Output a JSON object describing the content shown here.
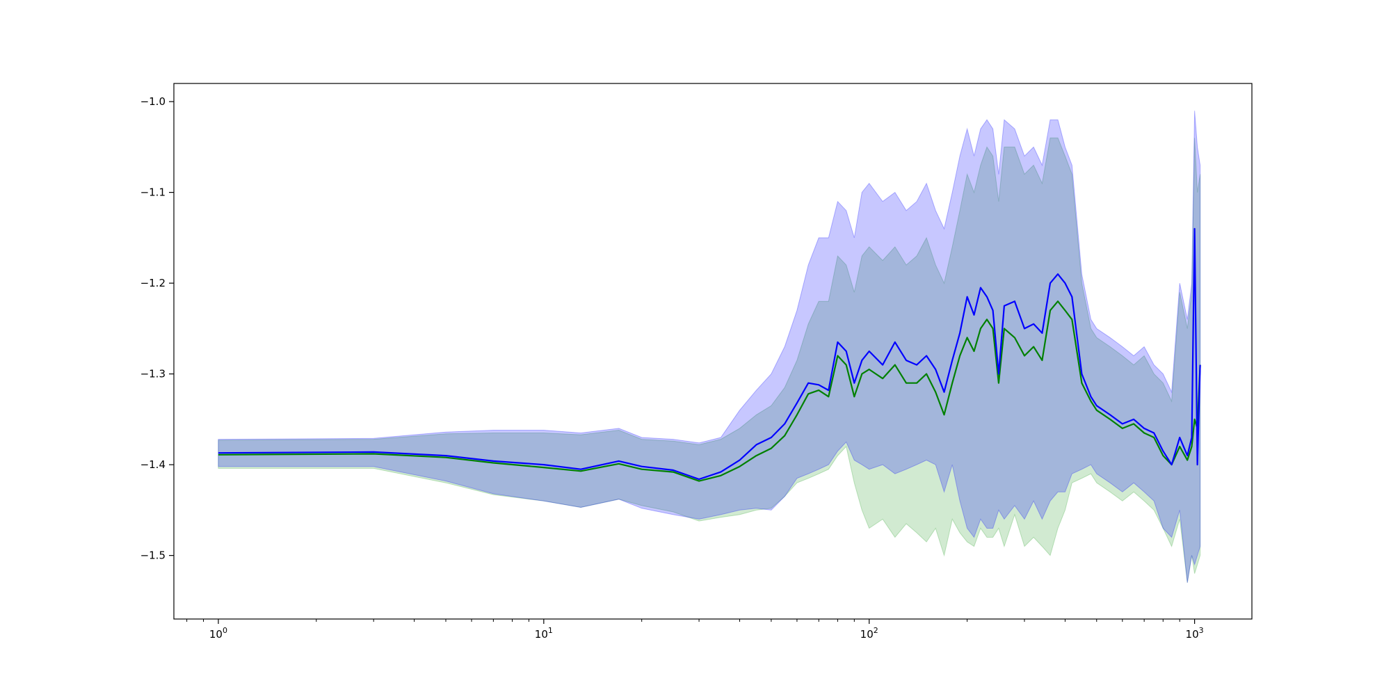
{
  "chart_data": {
    "type": "line",
    "title": "",
    "xlabel": "",
    "ylabel": "",
    "xscale": "log",
    "xlim": [
      0.73,
      1500
    ],
    "ylim": [
      -1.57,
      -0.98
    ],
    "grid": false,
    "legend": "none",
    "x_ticks": [
      {
        "value": 1,
        "base": "10",
        "exp": "0"
      },
      {
        "value": 10,
        "base": "10",
        "exp": "1"
      },
      {
        "value": 100,
        "base": "10",
        "exp": "2"
      },
      {
        "value": 1000,
        "base": "10",
        "exp": "3"
      }
    ],
    "y_ticks": [
      {
        "value": -1.0,
        "label": "−1.0"
      },
      {
        "value": -1.1,
        "label": "−1.1"
      },
      {
        "value": -1.2,
        "label": "−1.2"
      },
      {
        "value": -1.3,
        "label": "−1.3"
      },
      {
        "value": -1.4,
        "label": "−1.4"
      },
      {
        "value": -1.5,
        "label": "−1.5"
      }
    ],
    "series": [
      {
        "color": "#008000",
        "band_color": "#2ca02c",
        "x": [
          1,
          3,
          5,
          7,
          10,
          13,
          17,
          20,
          25,
          30,
          35,
          40,
          45,
          50,
          55,
          60,
          65,
          70,
          75,
          80,
          85,
          90,
          95,
          100,
          110,
          120,
          130,
          140,
          150,
          160,
          170,
          180,
          190,
          200,
          210,
          220,
          230,
          240,
          250,
          260,
          280,
          300,
          320,
          340,
          360,
          380,
          400,
          420,
          450,
          480,
          500,
          550,
          600,
          650,
          700,
          750,
          800,
          850,
          900,
          950,
          980,
          1000,
          1020,
          1040
        ],
        "y": [
          -1.389,
          -1.388,
          -1.392,
          -1.398,
          -1.403,
          -1.407,
          -1.399,
          -1.405,
          -1.408,
          -1.418,
          -1.412,
          -1.402,
          -1.39,
          -1.382,
          -1.368,
          -1.345,
          -1.322,
          -1.318,
          -1.325,
          -1.28,
          -1.29,
          -1.325,
          -1.3,
          -1.295,
          -1.305,
          -1.29,
          -1.31,
          -1.31,
          -1.3,
          -1.32,
          -1.345,
          -1.31,
          -1.28,
          -1.26,
          -1.275,
          -1.25,
          -1.24,
          -1.25,
          -1.31,
          -1.25,
          -1.26,
          -1.28,
          -1.27,
          -1.285,
          -1.23,
          -1.22,
          -1.23,
          -1.24,
          -1.31,
          -1.33,
          -1.34,
          -1.35,
          -1.36,
          -1.355,
          -1.365,
          -1.37,
          -1.39,
          -1.4,
          -1.38,
          -1.395,
          -1.38,
          -1.35,
          -1.36,
          -1.29
        ],
        "lower": [
          -1.404,
          -1.404,
          -1.42,
          -1.433,
          -1.44,
          -1.447,
          -1.438,
          -1.445,
          -1.452,
          -1.462,
          -1.458,
          -1.455,
          -1.45,
          -1.448,
          -1.435,
          -1.42,
          -1.415,
          -1.41,
          -1.405,
          -1.39,
          -1.38,
          -1.42,
          -1.45,
          -1.47,
          -1.46,
          -1.48,
          -1.465,
          -1.475,
          -1.485,
          -1.47,
          -1.5,
          -1.46,
          -1.475,
          -1.485,
          -1.49,
          -1.47,
          -1.48,
          -1.48,
          -1.47,
          -1.49,
          -1.455,
          -1.49,
          -1.48,
          -1.49,
          -1.5,
          -1.47,
          -1.45,
          -1.42,
          -1.415,
          -1.41,
          -1.42,
          -1.43,
          -1.44,
          -1.43,
          -1.44,
          -1.45,
          -1.47,
          -1.49,
          -1.46,
          -1.53,
          -1.5,
          -1.52,
          -1.51,
          -1.5
        ],
        "upper": [
          -1.373,
          -1.372,
          -1.366,
          -1.365,
          -1.365,
          -1.367,
          -1.362,
          -1.372,
          -1.374,
          -1.378,
          -1.372,
          -1.36,
          -1.345,
          -1.335,
          -1.315,
          -1.285,
          -1.245,
          -1.22,
          -1.22,
          -1.17,
          -1.18,
          -1.21,
          -1.17,
          -1.16,
          -1.175,
          -1.16,
          -1.18,
          -1.17,
          -1.15,
          -1.18,
          -1.2,
          -1.16,
          -1.12,
          -1.08,
          -1.1,
          -1.07,
          -1.05,
          -1.06,
          -1.11,
          -1.05,
          -1.05,
          -1.08,
          -1.07,
          -1.09,
          -1.04,
          -1.04,
          -1.06,
          -1.08,
          -1.2,
          -1.25,
          -1.26,
          -1.27,
          -1.28,
          -1.29,
          -1.28,
          -1.3,
          -1.31,
          -1.33,
          -1.21,
          -1.25,
          -1.21,
          -1.04,
          -1.1,
          -1.08
        ]
      },
      {
        "color": "#0000ff",
        "band_color": "#0000ff",
        "x": [
          1,
          3,
          5,
          7,
          10,
          13,
          17,
          20,
          25,
          30,
          35,
          40,
          45,
          50,
          55,
          60,
          65,
          70,
          75,
          80,
          85,
          90,
          95,
          100,
          110,
          120,
          130,
          140,
          150,
          160,
          170,
          180,
          190,
          200,
          210,
          220,
          230,
          240,
          250,
          260,
          280,
          300,
          320,
          340,
          360,
          380,
          400,
          420,
          450,
          480,
          500,
          550,
          600,
          650,
          700,
          750,
          800,
          850,
          900,
          950,
          980,
          1000,
          1020,
          1040
        ],
        "y": [
          -1.387,
          -1.386,
          -1.39,
          -1.396,
          -1.4,
          -1.405,
          -1.396,
          -1.402,
          -1.406,
          -1.416,
          -1.408,
          -1.395,
          -1.378,
          -1.37,
          -1.355,
          -1.332,
          -1.31,
          -1.312,
          -1.318,
          -1.265,
          -1.275,
          -1.31,
          -1.285,
          -1.275,
          -1.29,
          -1.265,
          -1.285,
          -1.29,
          -1.28,
          -1.295,
          -1.32,
          -1.285,
          -1.255,
          -1.215,
          -1.235,
          -1.205,
          -1.215,
          -1.23,
          -1.3,
          -1.225,
          -1.22,
          -1.25,
          -1.245,
          -1.255,
          -1.2,
          -1.19,
          -1.2,
          -1.215,
          -1.3,
          -1.325,
          -1.335,
          -1.345,
          -1.355,
          -1.35,
          -1.36,
          -1.365,
          -1.385,
          -1.4,
          -1.37,
          -1.39,
          -1.37,
          -1.14,
          -1.4,
          -1.29
        ],
        "lower": [
          -1.402,
          -1.402,
          -1.418,
          -1.432,
          -1.44,
          -1.447,
          -1.438,
          -1.448,
          -1.455,
          -1.46,
          -1.455,
          -1.45,
          -1.448,
          -1.45,
          -1.435,
          -1.415,
          -1.41,
          -1.405,
          -1.4,
          -1.385,
          -1.375,
          -1.395,
          -1.4,
          -1.405,
          -1.4,
          -1.41,
          -1.405,
          -1.4,
          -1.395,
          -1.4,
          -1.43,
          -1.4,
          -1.44,
          -1.47,
          -1.48,
          -1.46,
          -1.47,
          -1.47,
          -1.45,
          -1.46,
          -1.445,
          -1.46,
          -1.44,
          -1.46,
          -1.44,
          -1.43,
          -1.43,
          -1.41,
          -1.405,
          -1.4,
          -1.41,
          -1.42,
          -1.43,
          -1.42,
          -1.43,
          -1.44,
          -1.47,
          -1.48,
          -1.45,
          -1.53,
          -1.5,
          -1.51,
          -1.5,
          -1.49
        ],
        "upper": [
          -1.372,
          -1.371,
          -1.364,
          -1.362,
          -1.362,
          -1.365,
          -1.36,
          -1.37,
          -1.372,
          -1.376,
          -1.37,
          -1.34,
          -1.318,
          -1.3,
          -1.27,
          -1.23,
          -1.18,
          -1.15,
          -1.15,
          -1.11,
          -1.12,
          -1.15,
          -1.1,
          -1.09,
          -1.11,
          -1.1,
          -1.12,
          -1.11,
          -1.09,
          -1.12,
          -1.14,
          -1.1,
          -1.06,
          -1.03,
          -1.06,
          -1.03,
          -1.02,
          -1.03,
          -1.08,
          -1.02,
          -1.03,
          -1.06,
          -1.05,
          -1.07,
          -1.02,
          -1.02,
          -1.05,
          -1.07,
          -1.19,
          -1.24,
          -1.25,
          -1.26,
          -1.27,
          -1.28,
          -1.27,
          -1.29,
          -1.3,
          -1.32,
          -1.2,
          -1.24,
          -1.2,
          -1.01,
          -1.05,
          -1.07
        ]
      }
    ]
  }
}
